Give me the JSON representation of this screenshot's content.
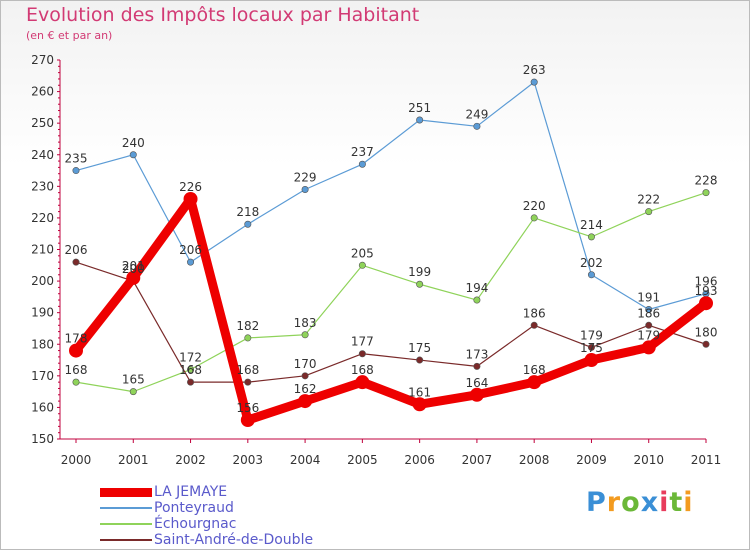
{
  "title": "Evolution des Impôts locaux par Habitant",
  "subtitle": "(en € et par an)",
  "brand": {
    "name": "Proxiti",
    "letter_colors": [
      "#3a8fd6",
      "#f39b1f",
      "#6bb838",
      "#3a8fd6",
      "#e83c5c",
      "#6bb838",
      "#f39b1f"
    ]
  },
  "chart_data": {
    "type": "line",
    "title": "Evolution des Impôts locaux par Habitant",
    "subtitle": "(en € et par an)",
    "xlabel": "",
    "ylabel": "",
    "x": [
      "2000",
      "2001",
      "2002",
      "2003",
      "2004",
      "2005",
      "2006",
      "2007",
      "2008",
      "2009",
      "2010",
      "2011"
    ],
    "ylim": [
      150,
      270
    ],
    "yticks": [
      150,
      160,
      170,
      180,
      190,
      200,
      210,
      220,
      230,
      240,
      250,
      260,
      270
    ],
    "grid": false,
    "legend_position": "bottom-left",
    "series": [
      {
        "name": "LA JEMAYE",
        "color": "#ee0000",
        "emphasis": true,
        "values": [
          178,
          201,
          226,
          156,
          162,
          168,
          161,
          164,
          168,
          175,
          179,
          193
        ],
        "labels": [
          "178",
          "201",
          "226",
          "156",
          "162",
          "168",
          "161",
          "164",
          "168",
          "175",
          "179",
          "193"
        ]
      },
      {
        "name": "Ponteyraud",
        "color": "#5b9bd5",
        "emphasis": false,
        "values": [
          235,
          240,
          206,
          218,
          229,
          237,
          251,
          249,
          263,
          202,
          191,
          196
        ],
        "labels": [
          "235",
          "240",
          "206",
          "218",
          "229",
          "237",
          "251",
          "249",
          "263",
          "202",
          "191",
          "196"
        ]
      },
      {
        "name": "Échourgnac",
        "color": "#8fd35a",
        "emphasis": false,
        "values": [
          168,
          165,
          172,
          182,
          183,
          205,
          199,
          194,
          220,
          214,
          222,
          228
        ],
        "labels": [
          "168",
          "165",
          "172",
          "182",
          "183",
          "205",
          "199",
          "194",
          "220",
          "214",
          "222",
          "228"
        ]
      },
      {
        "name": "Saint-André-de-Double",
        "color": "#7a2a2a",
        "emphasis": false,
        "values": [
          206,
          200,
          168,
          168,
          170,
          177,
          175,
          173,
          186,
          179,
          186,
          180
        ],
        "labels": [
          "206",
          "200",
          "168",
          "168",
          "170",
          "177",
          "175",
          "173",
          "186",
          "179",
          "186",
          "180"
        ]
      }
    ]
  },
  "legend": [
    {
      "label": "LA JEMAYE",
      "color": "#ee0000",
      "thick": true
    },
    {
      "label": "Ponteyraud",
      "color": "#5b9bd5",
      "thick": false
    },
    {
      "label": "Échourgnac",
      "color": "#8fd35a",
      "thick": false
    },
    {
      "label": "Saint-André-de-Double",
      "color": "#7a2a2a",
      "thick": false
    }
  ]
}
